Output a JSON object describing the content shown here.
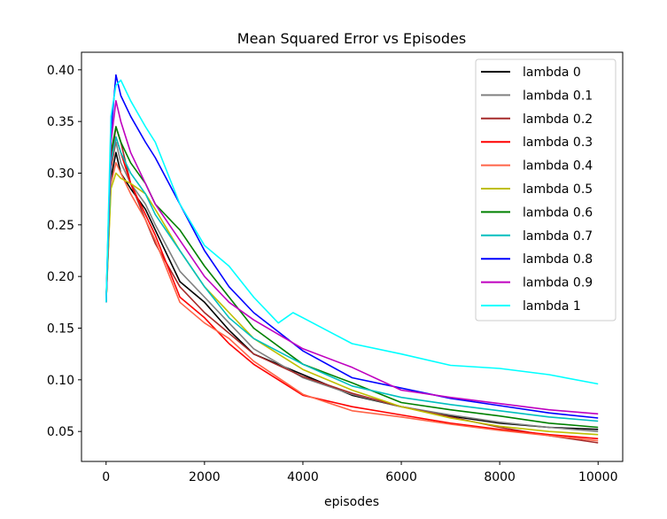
{
  "chart_data": {
    "type": "line",
    "title": "Mean Squared Error vs Episodes",
    "xlabel": "episodes",
    "ylabel": "",
    "xlim": [
      -500,
      10500
    ],
    "ylim": [
      0.021,
      0.417
    ],
    "xticks": [
      0,
      2000,
      4000,
      6000,
      8000,
      10000
    ],
    "xtick_labels": [
      "0",
      "2000",
      "4000",
      "6000",
      "8000",
      "10000"
    ],
    "yticks": [
      0.05,
      0.1,
      0.15,
      0.2,
      0.25,
      0.3,
      0.35,
      0.4
    ],
    "ytick_labels": [
      "0.05",
      "0.10",
      "0.15",
      "0.20",
      "0.25",
      "0.30",
      "0.35",
      "0.40"
    ],
    "grid": false,
    "legend_position": "top-right",
    "series": [
      {
        "name": "lambda 0",
        "color": "#000000",
        "x": [
          0,
          100,
          200,
          300,
          500,
          800,
          1000,
          1500,
          2000,
          2500,
          3000,
          4000,
          5000,
          6000,
          7000,
          8000,
          9000,
          10000
        ],
        "y": [
          0.175,
          0.295,
          0.32,
          0.3,
          0.285,
          0.265,
          0.245,
          0.195,
          0.175,
          0.148,
          0.125,
          0.105,
          0.085,
          0.074,
          0.065,
          0.058,
          0.054,
          0.052
        ]
      },
      {
        "name": "lambda 0.1",
        "color": "#808080",
        "x": [
          0,
          100,
          200,
          300,
          500,
          800,
          1000,
          1500,
          2000,
          2500,
          3000,
          4000,
          5000,
          6000,
          7000,
          8000,
          9000,
          10000
        ],
        "y": [
          0.175,
          0.305,
          0.33,
          0.31,
          0.29,
          0.27,
          0.25,
          0.205,
          0.18,
          0.155,
          0.13,
          0.102,
          0.086,
          0.074,
          0.066,
          0.059,
          0.054,
          0.05
        ]
      },
      {
        "name": "lambda 0.2",
        "color": "#a52a2a",
        "x": [
          0,
          100,
          200,
          300,
          500,
          800,
          1000,
          1500,
          2000,
          2500,
          3000,
          4000,
          5000,
          6000,
          7000,
          8000,
          9000,
          10000
        ],
        "y": [
          0.175,
          0.31,
          0.345,
          0.33,
          0.29,
          0.255,
          0.232,
          0.19,
          0.165,
          0.145,
          0.125,
          0.103,
          0.087,
          0.074,
          0.064,
          0.054,
          0.046,
          0.039
        ]
      },
      {
        "name": "lambda 0.3",
        "color": "#ff0000",
        "x": [
          0,
          100,
          200,
          300,
          500,
          800,
          1000,
          1500,
          2000,
          2500,
          3000,
          4000,
          5000,
          6000,
          7000,
          8000,
          9000,
          10000
        ],
        "y": [
          0.175,
          0.305,
          0.335,
          0.32,
          0.29,
          0.26,
          0.24,
          0.18,
          0.16,
          0.135,
          0.115,
          0.085,
          0.074,
          0.066,
          0.058,
          0.052,
          0.047,
          0.043
        ]
      },
      {
        "name": "lambda 0.4",
        "color": "#ff6347",
        "x": [
          0,
          100,
          200,
          300,
          500,
          800,
          1000,
          1500,
          2000,
          2500,
          3000,
          4000,
          5000,
          6000,
          7000,
          8000,
          9000,
          10000
        ],
        "y": [
          0.175,
          0.29,
          0.31,
          0.3,
          0.28,
          0.255,
          0.235,
          0.175,
          0.155,
          0.14,
          0.118,
          0.086,
          0.07,
          0.064,
          0.057,
          0.051,
          0.046,
          0.041
        ]
      },
      {
        "name": "lambda 0.5",
        "color": "#bfbf00",
        "x": [
          0,
          100,
          200,
          300,
          500,
          800,
          1000,
          1500,
          2000,
          2500,
          3000,
          4000,
          5000,
          6000,
          7000,
          8000,
          9000,
          10000
        ],
        "y": [
          0.175,
          0.285,
          0.3,
          0.295,
          0.29,
          0.28,
          0.265,
          0.225,
          0.19,
          0.165,
          0.14,
          0.11,
          0.09,
          0.074,
          0.063,
          0.055,
          0.05,
          0.047
        ]
      },
      {
        "name": "lambda 0.6",
        "color": "#008000",
        "x": [
          0,
          100,
          200,
          300,
          500,
          800,
          1000,
          1500,
          2000,
          2500,
          3000,
          4000,
          5000,
          6000,
          7000,
          8000,
          9000,
          10000
        ],
        "y": [
          0.175,
          0.32,
          0.345,
          0.33,
          0.31,
          0.29,
          0.27,
          0.245,
          0.21,
          0.18,
          0.15,
          0.115,
          0.097,
          0.078,
          0.071,
          0.065,
          0.058,
          0.054
        ]
      },
      {
        "name": "lambda 0.7",
        "color": "#00bfbf",
        "x": [
          0,
          100,
          200,
          300,
          500,
          800,
          1000,
          1500,
          2000,
          2500,
          3000,
          4000,
          5000,
          6000,
          7000,
          8000,
          9000,
          10000
        ],
        "y": [
          0.175,
          0.31,
          0.335,
          0.32,
          0.3,
          0.28,
          0.26,
          0.225,
          0.19,
          0.16,
          0.14,
          0.115,
          0.094,
          0.083,
          0.076,
          0.07,
          0.064,
          0.06
        ]
      },
      {
        "name": "lambda 0.8",
        "color": "#0000ff",
        "x": [
          0,
          100,
          200,
          300,
          500,
          800,
          1000,
          1500,
          2000,
          2500,
          3000,
          4000,
          5000,
          6000,
          7000,
          8000,
          9000,
          10000
        ],
        "y": [
          0.175,
          0.34,
          0.395,
          0.375,
          0.355,
          0.33,
          0.315,
          0.27,
          0.225,
          0.19,
          0.165,
          0.128,
          0.102,
          0.092,
          0.082,
          0.075,
          0.068,
          0.063
        ]
      },
      {
        "name": "lambda 0.9",
        "color": "#bf00bf",
        "x": [
          0,
          100,
          200,
          300,
          500,
          800,
          1000,
          1500,
          2000,
          2500,
          3000,
          4000,
          5000,
          6000,
          7000,
          8000,
          9000,
          10000
        ],
        "y": [
          0.175,
          0.33,
          0.37,
          0.35,
          0.32,
          0.29,
          0.27,
          0.235,
          0.2,
          0.175,
          0.158,
          0.13,
          0.112,
          0.09,
          0.083,
          0.077,
          0.071,
          0.067
        ]
      },
      {
        "name": "lambda 1",
        "color": "#00ffff",
        "x": [
          0,
          100,
          200,
          300,
          500,
          800,
          1000,
          1500,
          2000,
          2500,
          3000,
          3500,
          3800,
          4000,
          5000,
          6000,
          7000,
          8000,
          9000,
          10000
        ],
        "y": [
          0.175,
          0.355,
          0.385,
          0.39,
          0.37,
          0.345,
          0.33,
          0.27,
          0.23,
          0.21,
          0.18,
          0.155,
          0.165,
          0.16,
          0.135,
          0.125,
          0.114,
          0.111,
          0.105,
          0.096
        ]
      }
    ]
  }
}
